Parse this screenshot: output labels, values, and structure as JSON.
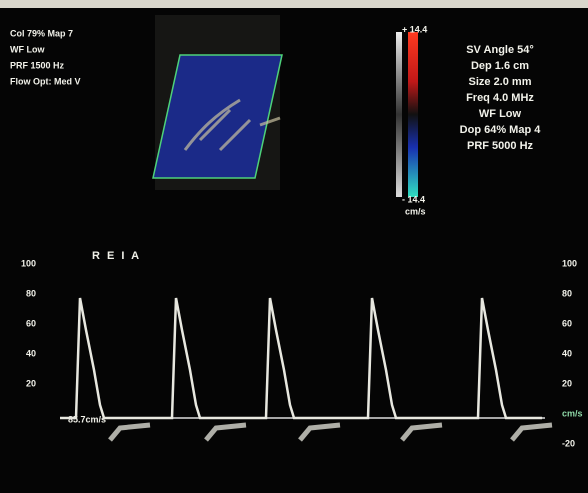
{
  "color_settings": [
    "Col 79% Map 7",
    "WF Low",
    "PRF 1500 Hz",
    "Flow Opt: Med V"
  ],
  "doppler_settings": [
    "SV Angle 54°",
    "Dep 1.6 cm",
    "Size 2.0 mm",
    "Freq 4.0 MHz",
    "WF Low",
    "Dop 64% Map 4",
    "PRF 5000 Hz"
  ],
  "color_bar": {
    "top": "+ 14.4",
    "bottom": "- 14.4",
    "unit": "cm/s"
  },
  "vessel_label": "R E I A",
  "measurement": "85.7cm/s",
  "left_scale": [
    "100",
    "80",
    "60",
    "40",
    "20"
  ],
  "right_scale": [
    "100",
    "80",
    "60",
    "40",
    "20",
    "cm/s",
    "-20"
  ]
}
